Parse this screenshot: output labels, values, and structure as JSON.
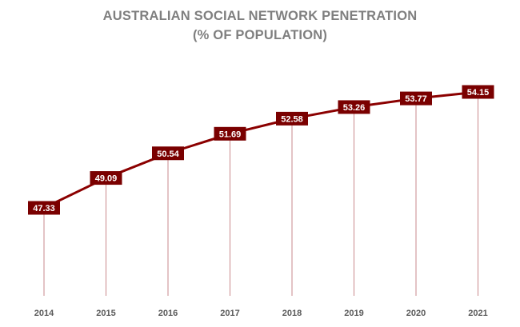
{
  "chart_data": {
    "type": "line",
    "title": "AUSTRALIAN SOCIAL NETWORK PENETRATION",
    "subtitle": "(% OF POPULATION)",
    "categories": [
      "2014",
      "2015",
      "2016",
      "2017",
      "2018",
      "2019",
      "2020",
      "2021"
    ],
    "series": [
      {
        "values": [
          47.33,
          49.09,
          50.54,
          51.69,
          52.58,
          53.26,
          53.77,
          54.15
        ]
      }
    ],
    "data_labels": [
      "47.33",
      "49.09",
      "50.54",
      "51.69",
      "52.58",
      "53.26",
      "53.77",
      "54.15"
    ],
    "xlabel": "",
    "ylabel": "",
    "grid": false,
    "legend": "none",
    "colors": {
      "line": "#8b0000",
      "drop_line": "#c9898c",
      "label_box": "#7a0000",
      "label_text": "#ffffff",
      "title": "#7f7f7f",
      "tick": "#595959"
    }
  }
}
